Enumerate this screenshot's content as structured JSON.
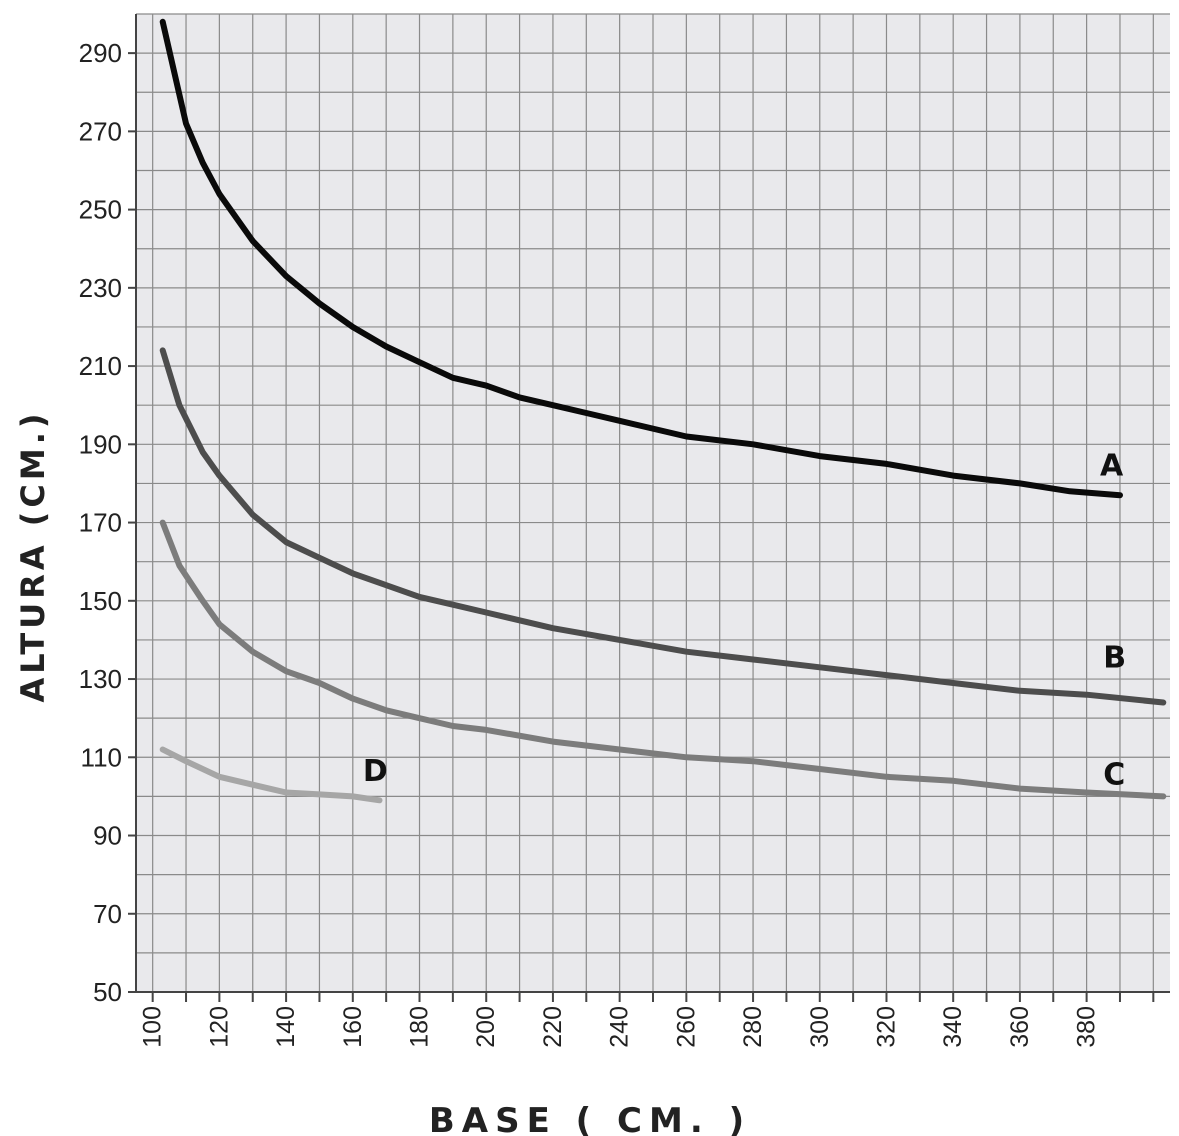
{
  "chart_data": {
    "type": "line",
    "xlabel": "BASE ( CM. )",
    "ylabel": "ALTURA (CM.)",
    "xlim": [
      95,
      405
    ],
    "ylim": [
      50,
      300
    ],
    "x_ticks": [
      "100",
      "120",
      "140",
      "160",
      "180",
      "200",
      "220",
      "240",
      "260",
      "280",
      "300",
      "320",
      "340",
      "360",
      "380"
    ],
    "y_ticks": [
      "50",
      "70",
      "90",
      "110",
      "130",
      "150",
      "170",
      "190",
      "210",
      "230",
      "250",
      "270",
      "290"
    ],
    "grid": true,
    "series": [
      {
        "name": "A",
        "color": "#0a0a0a",
        "points": [
          [
            103,
            298
          ],
          [
            110,
            272
          ],
          [
            115,
            262
          ],
          [
            120,
            254
          ],
          [
            130,
            242
          ],
          [
            140,
            233
          ],
          [
            150,
            226
          ],
          [
            160,
            220
          ],
          [
            170,
            215
          ],
          [
            180,
            211
          ],
          [
            190,
            207
          ],
          [
            200,
            205
          ],
          [
            210,
            202
          ],
          [
            220,
            200
          ],
          [
            230,
            198
          ],
          [
            240,
            196
          ],
          [
            260,
            192
          ],
          [
            280,
            190
          ],
          [
            300,
            187
          ],
          [
            320,
            185
          ],
          [
            340,
            182
          ],
          [
            360,
            180
          ],
          [
            375,
            178
          ],
          [
            390,
            177
          ]
        ]
      },
      {
        "name": "B",
        "color": "#4d4d4d",
        "points": [
          [
            103,
            214
          ],
          [
            108,
            200
          ],
          [
            115,
            188
          ],
          [
            120,
            182
          ],
          [
            130,
            172
          ],
          [
            140,
            165
          ],
          [
            150,
            161
          ],
          [
            160,
            157
          ],
          [
            170,
            154
          ],
          [
            180,
            151
          ],
          [
            190,
            149
          ],
          [
            200,
            147
          ],
          [
            220,
            143
          ],
          [
            240,
            140
          ],
          [
            260,
            137
          ],
          [
            280,
            135
          ],
          [
            300,
            133
          ],
          [
            320,
            131
          ],
          [
            340,
            129
          ],
          [
            360,
            127
          ],
          [
            380,
            126
          ],
          [
            403,
            124
          ]
        ]
      },
      {
        "name": "C",
        "color": "#7c7c7c",
        "points": [
          [
            103,
            170
          ],
          [
            108,
            159
          ],
          [
            115,
            150
          ],
          [
            120,
            144
          ],
          [
            130,
            137
          ],
          [
            140,
            132
          ],
          [
            150,
            129
          ],
          [
            160,
            125
          ],
          [
            170,
            122
          ],
          [
            180,
            120
          ],
          [
            190,
            118
          ],
          [
            200,
            117
          ],
          [
            220,
            114
          ],
          [
            240,
            112
          ],
          [
            260,
            110
          ],
          [
            280,
            109
          ],
          [
            300,
            107
          ],
          [
            320,
            105
          ],
          [
            340,
            104
          ],
          [
            360,
            102
          ],
          [
            380,
            101
          ],
          [
            403,
            100
          ]
        ]
      },
      {
        "name": "D",
        "color": "#a6a6a6",
        "points": [
          [
            103,
            112
          ],
          [
            110,
            109
          ],
          [
            120,
            105
          ],
          [
            130,
            103
          ],
          [
            140,
            101
          ],
          [
            150,
            100.5
          ],
          [
            160,
            100
          ],
          [
            168,
            99
          ]
        ]
      }
    ],
    "annotations": [
      "A",
      "B",
      "C",
      "D"
    ]
  },
  "style": {
    "plot_background": "#e9e9ec",
    "grid_color": "#8a8a8a"
  }
}
